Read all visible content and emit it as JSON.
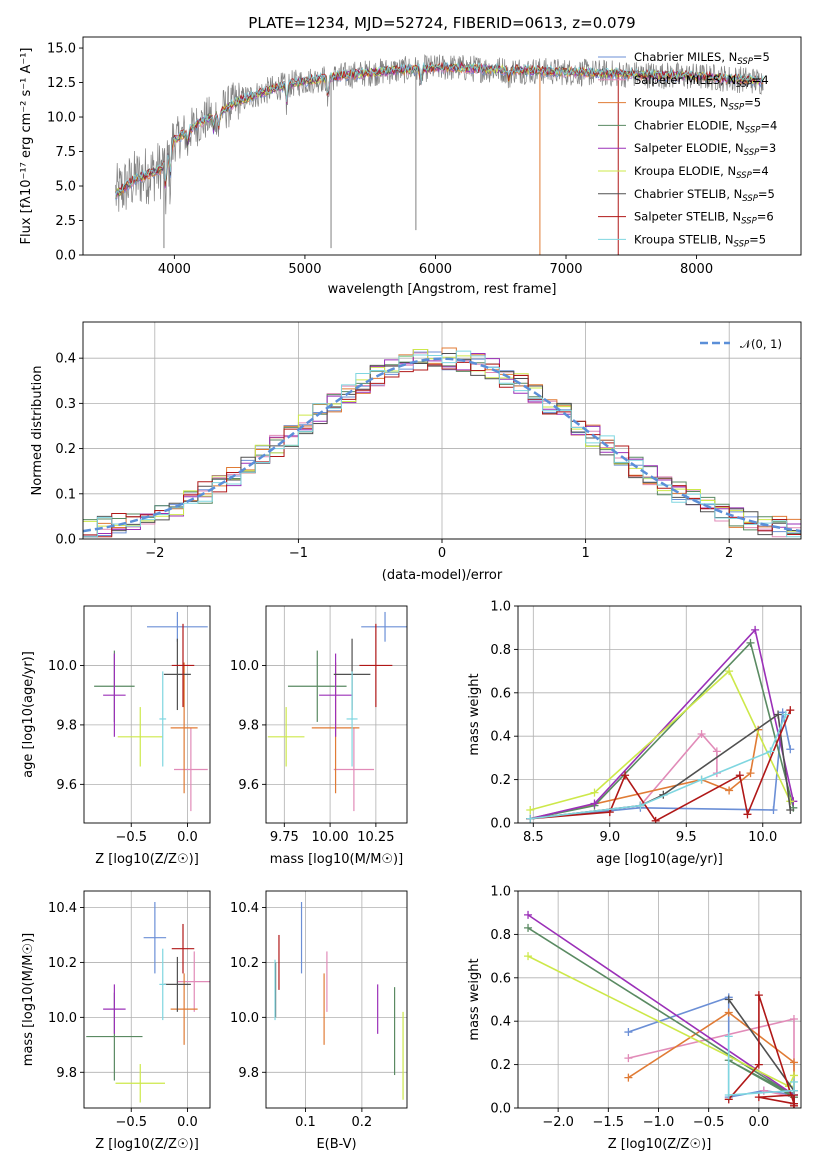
{
  "title": "PLATE=1234, MJD=52724, FIBERID=0613, z=0.079",
  "colors": {
    "Chabrier MILES": "#6b8fd6",
    "Salpeter MILES": "#e18bb8",
    "Kroupa MILES": "#e07b35",
    "Chabrier ELODIE": "#5a8a62",
    "Salpeter ELODIE": "#9b30b8",
    "Kroupa ELODIE": "#cde84a",
    "Chabrier STELIB": "#505050",
    "Salpeter STELIB": "#b01818",
    "Kroupa STELIB": "#7fd6e0",
    "data": "#808080",
    "normal": "#5b8fd8"
  },
  "chart_data": [
    {
      "type": "line",
      "title": "PLATE=1234, MJD=52724, FIBERID=0613, z=0.079",
      "xlabel": "wavelength [Angstrom, rest frame]",
      "ylabel": "Flux [fλ10⁻¹⁷ erg cm⁻² s⁻¹ A⁻¹]",
      "xlim": [
        3300,
        8800
      ],
      "ylim": [
        0,
        15.8
      ],
      "xticks": [
        4000,
        5000,
        6000,
        7000,
        8000
      ],
      "yticks": [
        0.0,
        2.5,
        5.0,
        7.5,
        10.0,
        12.5,
        15.0
      ],
      "grid": false,
      "legend_position": "right",
      "continuum": {
        "x": [
          3550,
          3700,
          3900,
          4000,
          4200,
          4500,
          4800,
          5000,
          5300,
          5600,
          5900,
          6100,
          6300,
          6600,
          6900,
          7200,
          7500,
          7800,
          8100,
          8500
        ],
        "y": [
          4.4,
          5.5,
          6.2,
          8.3,
          9.6,
          11.2,
          12.2,
          12.6,
          13.0,
          13.3,
          13.5,
          13.6,
          13.5,
          13.4,
          13.3,
          13.2,
          13.1,
          13.0,
          12.9,
          12.6
        ]
      },
      "series": [
        {
          "name": "Chabrier MILES, N_SSP=5"
        },
        {
          "name": "Salpeter MILES, N_SSP=4"
        },
        {
          "name": "Kroupa MILES, N_SSP=5"
        },
        {
          "name": "Chabrier ELODIE, N_SSP=4"
        },
        {
          "name": "Salpeter ELODIE, N_SSP=3"
        },
        {
          "name": "Kroupa ELODIE, N_SSP=4"
        },
        {
          "name": "Chabrier STELIB, N_SSP=5"
        },
        {
          "name": "Salpeter STELIB, N_SSP=6"
        },
        {
          "name": "Kroupa STELIB, N_SSP=5"
        }
      ]
    },
    {
      "type": "line",
      "xlabel": "(data-model)/error",
      "ylabel": "Normed distribution",
      "xlim": [
        -2.5,
        2.5
      ],
      "ylim": [
        0,
        0.48
      ],
      "xticks": [
        -2,
        -1,
        0,
        1,
        2
      ],
      "yticks": [
        0.0,
        0.1,
        0.2,
        0.3,
        0.4
      ],
      "grid": true,
      "legend_position": "top-right",
      "reference_curve": "𝒩(0, 1)",
      "histogram_bin_width": 0.1
    },
    {
      "type": "scatter",
      "xlabel": "Z [log10(Z/Z☉)]",
      "ylabel": "age  [log10(age/yr)]",
      "xlim": [
        -0.92,
        0.2
      ],
      "ylim": [
        9.47,
        10.2
      ],
      "xticks": [
        -0.5,
        0.0
      ],
      "yticks": [
        9.6,
        9.8,
        10.0
      ],
      "grid": true,
      "points": [
        {
          "model": "Chabrier MILES",
          "x": -0.09,
          "y": 10.13,
          "xerr": 0.27,
          "yerr": 0.05
        },
        {
          "model": "Salpeter MILES",
          "x": 0.03,
          "y": 9.65,
          "xerr": 0.15,
          "yerr": 0.14
        },
        {
          "model": "Kroupa MILES",
          "x": -0.03,
          "y": 9.79,
          "xerr": 0.12,
          "yerr": 0.22
        },
        {
          "model": "Chabrier ELODIE",
          "x": -0.65,
          "y": 9.93,
          "xerr": 0.18,
          "yerr": 0.12
        },
        {
          "model": "Salpeter ELODIE",
          "x": -0.65,
          "y": 9.9,
          "xerr": 0.1,
          "yerr": 0.14
        },
        {
          "model": "Kroupa ELODIE",
          "x": -0.42,
          "y": 9.76,
          "xerr": 0.2,
          "yerr": 0.1
        },
        {
          "model": "Chabrier STELIB",
          "x": -0.09,
          "y": 9.97,
          "xerr": 0.12,
          "yerr": 0.12
        },
        {
          "model": "Salpeter STELIB",
          "x": -0.04,
          "y": 10.0,
          "xerr": 0.1,
          "yerr": 0.14
        },
        {
          "model": "Kroupa STELIB",
          "x": -0.22,
          "y": 9.82,
          "xerr": 0.03,
          "yerr": 0.16
        }
      ]
    },
    {
      "type": "scatter",
      "xlabel": "mass [log10(M/M☉)]",
      "ylabel": "",
      "xlim": [
        9.65,
        10.42
      ],
      "ylim": [
        9.47,
        10.2
      ],
      "xticks": [
        9.75,
        10.0,
        10.25
      ],
      "yticks": [
        9.6,
        9.8,
        10.0
      ],
      "grid": true,
      "points": [
        {
          "model": "Chabrier MILES",
          "x": 10.3,
          "y": 10.13,
          "xerr": 0.13,
          "yerr": 0.05
        },
        {
          "model": "Salpeter MILES",
          "x": 10.13,
          "y": 9.65,
          "xerr": 0.11,
          "yerr": 0.14
        },
        {
          "model": "Kroupa MILES",
          "x": 10.03,
          "y": 9.79,
          "xerr": 0.13,
          "yerr": 0.22
        },
        {
          "model": "Chabrier ELODIE",
          "x": 9.93,
          "y": 9.93,
          "xerr": 0.16,
          "yerr": 0.12
        },
        {
          "model": "Salpeter ELODIE",
          "x": 10.03,
          "y": 9.9,
          "xerr": 0.09,
          "yerr": 0.14
        },
        {
          "model": "Kroupa ELODIE",
          "x": 9.76,
          "y": 9.76,
          "xerr": 0.1,
          "yerr": 0.1
        },
        {
          "model": "Chabrier STELIB",
          "x": 10.12,
          "y": 9.97,
          "xerr": 0.1,
          "yerr": 0.12
        },
        {
          "model": "Salpeter STELIB",
          "x": 10.25,
          "y": 10.0,
          "xerr": 0.09,
          "yerr": 0.14
        },
        {
          "model": "Kroupa STELIB",
          "x": 10.12,
          "y": 9.82,
          "xerr": 0.03,
          "yerr": 0.16
        }
      ]
    },
    {
      "type": "line",
      "xlabel": "age  [log10(age/yr)]",
      "ylabel": "mass weight",
      "xlim": [
        8.4,
        10.25
      ],
      "ylim": [
        0,
        1.0
      ],
      "xticks": [
        8.5,
        9.0,
        9.5,
        10.0
      ],
      "yticks": [
        0.0,
        0.2,
        0.4,
        0.6,
        0.8,
        1.0
      ],
      "grid": true,
      "series": [
        {
          "model": "Chabrier MILES",
          "x": [
            8.48,
            9.2,
            10.07,
            10.13,
            10.18
          ],
          "y": [
            0.02,
            0.07,
            0.06,
            0.51,
            0.34
          ]
        },
        {
          "model": "Salpeter MILES",
          "x": [
            8.48,
            9.2,
            9.6,
            9.7,
            9.7
          ],
          "y": [
            0.02,
            0.08,
            0.41,
            0.33,
            0.23
          ]
        },
        {
          "model": "Kroupa MILES",
          "x": [
            8.48,
            9.6,
            9.78,
            9.92,
            9.97
          ],
          "y": [
            0.02,
            0.2,
            0.15,
            0.23,
            0.43
          ]
        },
        {
          "model": "Chabrier ELODIE",
          "x": [
            8.48,
            8.9,
            9.92,
            10.2
          ],
          "y": [
            0.02,
            0.08,
            0.83,
            0.07
          ]
        },
        {
          "model": "Salpeter ELODIE",
          "x": [
            8.48,
            8.9,
            9.95,
            10.2
          ],
          "y": [
            0.02,
            0.09,
            0.89,
            0.1
          ]
        },
        {
          "model": "Kroupa ELODIE",
          "x": [
            8.48,
            8.9,
            9.78,
            10.18
          ],
          "y": [
            0.06,
            0.14,
            0.7,
            0.1
          ]
        },
        {
          "model": "Chabrier STELIB",
          "x": [
            8.48,
            9.2,
            9.35,
            10.1,
            10.18
          ],
          "y": [
            0.02,
            0.08,
            0.13,
            0.5,
            0.06
          ]
        },
        {
          "model": "Salpeter STELIB",
          "x": [
            8.48,
            9.0,
            9.1,
            9.3,
            9.85,
            9.9,
            10.18
          ],
          "y": [
            0.02,
            0.05,
            0.22,
            0.01,
            0.22,
            0.04,
            0.52
          ]
        },
        {
          "model": "Kroupa STELIB",
          "x": [
            8.48,
            9.2,
            9.6,
            10.05,
            10.15
          ],
          "y": [
            0.02,
            0.08,
            0.2,
            0.33,
            0.5
          ]
        }
      ]
    },
    {
      "type": "scatter",
      "xlabel": "Z [log10(Z/Z☉)]",
      "ylabel": "mass [log10(M/M☉)]",
      "xlim": [
        -0.92,
        0.2
      ],
      "ylim": [
        9.67,
        10.46
      ],
      "xticks": [
        -0.5,
        0.0
      ],
      "yticks": [
        9.8,
        10.0,
        10.2,
        10.4
      ],
      "grid": true,
      "points": [
        {
          "model": "Chabrier MILES",
          "x": -0.29,
          "y": 10.29,
          "xerr": 0.1,
          "yerr": 0.13
        },
        {
          "model": "Salpeter MILES",
          "x": 0.06,
          "y": 10.13,
          "xerr": 0.15,
          "yerr": 0.11
        },
        {
          "model": "Kroupa MILES",
          "x": -0.03,
          "y": 10.03,
          "xerr": 0.12,
          "yerr": 0.13
        },
        {
          "model": "Chabrier ELODIE",
          "x": -0.65,
          "y": 9.93,
          "xerr": 0.25,
          "yerr": 0.16
        },
        {
          "model": "Salpeter ELODIE",
          "x": -0.65,
          "y": 10.03,
          "xerr": 0.1,
          "yerr": 0.09
        },
        {
          "model": "Kroupa ELODIE",
          "x": -0.42,
          "y": 9.76,
          "xerr": 0.22,
          "yerr": 0.07
        },
        {
          "model": "Chabrier STELIB",
          "x": -0.09,
          "y": 10.12,
          "xerr": 0.12,
          "yerr": 0.1
        },
        {
          "model": "Salpeter STELIB",
          "x": -0.04,
          "y": 10.25,
          "xerr": 0.1,
          "yerr": 0.09
        },
        {
          "model": "Kroupa STELIB",
          "x": -0.22,
          "y": 10.12,
          "xerr": 0.03,
          "yerr": 0.13
        }
      ]
    },
    {
      "type": "scatter",
      "xlabel": "E(B-V)",
      "ylabel": "",
      "xlim": [
        0.03,
        0.28
      ],
      "ylim": [
        9.67,
        10.46
      ],
      "xticks": [
        0.1,
        0.2
      ],
      "yticks": [
        9.8,
        10.0,
        10.2,
        10.4
      ],
      "grid": true,
      "points": [
        {
          "model": "Chabrier MILES",
          "x": 0.093,
          "y": 10.29,
          "yerr": 0.13
        },
        {
          "model": "Salpeter MILES",
          "x": 0.138,
          "y": 10.13,
          "yerr": 0.11
        },
        {
          "model": "Kroupa MILES",
          "x": 0.133,
          "y": 10.03,
          "yerr": 0.13
        },
        {
          "model": "Chabrier ELODIE",
          "x": 0.258,
          "y": 9.95,
          "yerr": 0.16
        },
        {
          "model": "Salpeter ELODIE",
          "x": 0.228,
          "y": 10.03,
          "yerr": 0.09
        },
        {
          "model": "Kroupa ELODIE",
          "x": 0.273,
          "y": 9.86,
          "yerr": 0.16
        },
        {
          "model": "Chabrier STELIB",
          "x": 0.047,
          "y": 10.1,
          "yerr": 0.1
        },
        {
          "model": "Salpeter STELIB",
          "x": 0.053,
          "y": 10.2,
          "yerr": 0.1
        },
        {
          "model": "Kroupa STELIB",
          "x": 0.046,
          "y": 10.1,
          "yerr": 0.11
        }
      ]
    },
    {
      "type": "line",
      "xlabel": "Z [log10(Z/Z☉)]",
      "ylabel": "mass weight",
      "xlim": [
        -2.4,
        0.42
      ],
      "ylim": [
        0,
        1.0
      ],
      "xticks": [
        -2.0,
        -1.5,
        -1.0,
        -0.5,
        0.0
      ],
      "yticks": [
        0.0,
        0.2,
        0.4,
        0.6,
        0.8,
        1.0
      ],
      "grid": true,
      "series": [
        {
          "model": "Chabrier MILES",
          "x": [
            -1.3,
            -0.3,
            -0.3,
            0.05,
            0.35
          ],
          "y": [
            0.35,
            0.51,
            0.05,
            0.08,
            0.06
          ]
        },
        {
          "model": "Salpeter MILES",
          "x": [
            -1.3,
            0.35,
            0.35,
            0.05
          ],
          "y": [
            0.23,
            0.41,
            0.05,
            0.08
          ]
        },
        {
          "model": "Kroupa MILES",
          "x": [
            -1.3,
            -0.3,
            0.35,
            0.35
          ],
          "y": [
            0.14,
            0.44,
            0.21,
            0.05
          ]
        },
        {
          "model": "Chabrier ELODIE",
          "x": [
            -2.3,
            0.3,
            -0.3,
            0.35
          ],
          "y": [
            0.83,
            0.07,
            0.22,
            0.05
          ]
        },
        {
          "model": "Salpeter ELODIE",
          "x": [
            -2.3,
            0.35,
            0.35
          ],
          "y": [
            0.89,
            0.06,
            0.02
          ]
        },
        {
          "model": "Kroupa ELODIE",
          "x": [
            -2.3,
            0.3,
            0.35
          ],
          "y": [
            0.7,
            0.1,
            0.15
          ]
        },
        {
          "model": "Chabrier STELIB",
          "x": [
            -0.3,
            0.35,
            0.35
          ],
          "y": [
            0.5,
            0.08,
            0.02
          ]
        },
        {
          "model": "Salpeter STELIB",
          "x": [
            -0.3,
            0.0,
            0.0,
            0.35,
            0.0,
            0.35,
            0.35
          ],
          "y": [
            0.04,
            0.2,
            0.52,
            0.02,
            0.05,
            0.06,
            0.01
          ]
        },
        {
          "model": "Kroupa STELIB",
          "x": [
            -0.3,
            -0.3,
            0.35,
            0.35
          ],
          "y": [
            0.33,
            0.06,
            0.08,
            0.12
          ]
        }
      ]
    }
  ]
}
